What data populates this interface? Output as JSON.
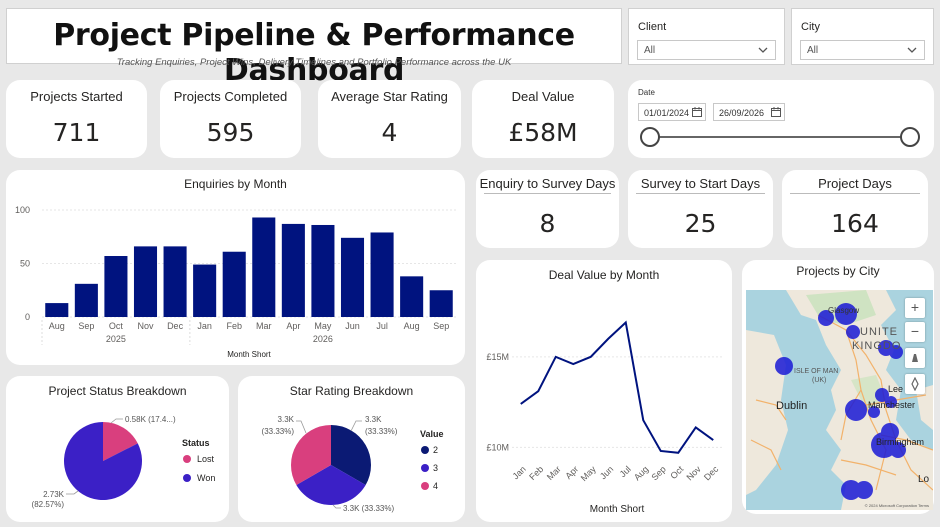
{
  "header": {
    "title": "Project Pipeline & Performance Dashboard",
    "subtitle": "Tracking Enquiries, Project Wins, Delivery Timelines and Portfolio Performance across the UK"
  },
  "filters": {
    "client": {
      "label": "Client",
      "value": "All"
    },
    "city": {
      "label": "City",
      "value": "All"
    },
    "date": {
      "label": "Date",
      "start": "01/01/2024",
      "end": "26/09/2026"
    }
  },
  "kpis": {
    "projects_started": {
      "label": "Projects Started",
      "value": "711"
    },
    "projects_completed": {
      "label": "Projects Completed",
      "value": "595"
    },
    "avg_star_rating": {
      "label": "Average Star Rating",
      "value": "4"
    },
    "deal_value": {
      "label": "Deal Value",
      "value": "£58M"
    },
    "enquiry_to_survey": {
      "label": "Enquiry to Survey Days",
      "value": "8"
    },
    "survey_to_start": {
      "label": "Survey to Start Days",
      "value": "25"
    },
    "project_days": {
      "label": "Project Days",
      "value": "164"
    }
  },
  "colors": {
    "navy": "#00137f",
    "won": "#3b20c6",
    "lost": "#d93f7e",
    "accent_dark": "#0b1a74"
  },
  "chart_data": [
    {
      "type": "bar",
      "title": "Enquiries by Month",
      "xlabel": "Month Short",
      "ylabel": "",
      "categories": [
        "Aug",
        "Sep",
        "Oct",
        "Nov",
        "Dec",
        "Jan",
        "Feb",
        "Mar",
        "Apr",
        "May",
        "Jun",
        "Jul",
        "Aug",
        "Sep"
      ],
      "year_labels": [
        {
          "label": "2025",
          "index": 2
        },
        {
          "label": "2026",
          "index": 9
        }
      ],
      "values": [
        13,
        31,
        57,
        66,
        66,
        49,
        61,
        93,
        87,
        86,
        74,
        79,
        38,
        25
      ],
      "ylim": [
        0,
        100
      ],
      "yticks": [
        0,
        50,
        100
      ],
      "grid": true
    },
    {
      "type": "line",
      "title": "Deal Value by Month",
      "xlabel": "Month Short",
      "categories": [
        "Jan",
        "Feb",
        "Mar",
        "Apr",
        "May",
        "Jun",
        "Jul",
        "Aug",
        "Sep",
        "Oct",
        "Nov",
        "Dec"
      ],
      "values": [
        12.4,
        13.1,
        15.0,
        14.6,
        15.0,
        16.0,
        16.9,
        11.5,
        9.8,
        9.7,
        11.1,
        10.4
      ],
      "units": "£M",
      "ylim": [
        9.3,
        17.7
      ],
      "yticks": [
        {
          "value": 10,
          "label": "£10M"
        },
        {
          "value": 15,
          "label": "£15M"
        }
      ],
      "grid": true
    },
    {
      "type": "pie",
      "title": "Project Status Breakdown",
      "legend_title": "Status",
      "slices": [
        {
          "name": "Lost",
          "value": 580,
          "label": "0.58K (17.4...)",
          "percent": 17.43
        },
        {
          "name": "Won",
          "value": 2730,
          "label": "2.73K",
          "sublabel": "(82.57%)",
          "percent": 82.57
        }
      ]
    },
    {
      "type": "pie",
      "title": "Star Rating Breakdown",
      "legend_title": "Value",
      "slices": [
        {
          "name": "2",
          "value": 3300,
          "label": "3.3K",
          "sublabel": "(33.33%)",
          "percent": 33.33
        },
        {
          "name": "3",
          "value": 3300,
          "label": "3.3K (33.33%)",
          "percent": 33.33
        },
        {
          "name": "4",
          "value": 3300,
          "label": "3.3K",
          "sublabel": "(33.33%)",
          "percent": 33.33
        }
      ]
    }
  ],
  "map": {
    "title": "Projects by City",
    "labels": [
      "Glasgow",
      "UNITE",
      "KINGDO",
      "ISLE OF MAN",
      "(UK)",
      "Dublin",
      "Lee",
      "Manchester",
      "Birmingham",
      "Lo"
    ],
    "controls": [
      "+",
      "−"
    ],
    "attribution": "© 2024 Microsoft Corporation Terms"
  }
}
